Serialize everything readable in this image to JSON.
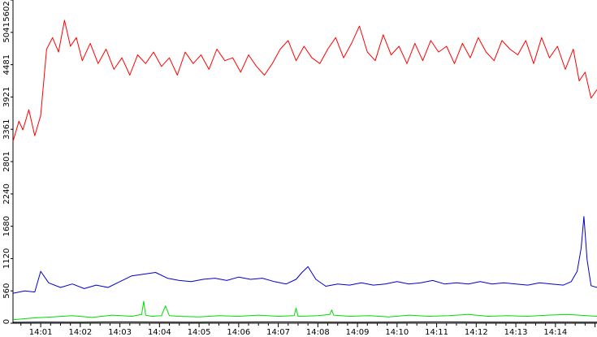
{
  "chart_data": {
    "type": "line",
    "title": "",
    "xlabel": "",
    "ylabel": "",
    "ylim": [
      0,
      5602
    ],
    "y_ticks": [
      0,
      560,
      1120,
      1680,
      2240,
      2801,
      3361,
      3921,
      4481,
      5041,
      5602
    ],
    "y_tick_labels": [
      "0",
      "560",
      "1120",
      "1680",
      "2240",
      "2801",
      "3361",
      "3921",
      "4481",
      "5041",
      "5602"
    ],
    "x_ticks": [
      "14:01",
      "14:02",
      "14:03",
      "14:04",
      "14:05",
      "14:06",
      "14:07",
      "14:08",
      "14:09",
      "14:10",
      "14:11",
      "14:12",
      "14:13",
      "14:14"
    ],
    "x_range_minutes": [
      0.3,
      15.05
    ],
    "grid": false,
    "legend": "none",
    "series": [
      {
        "color": "#ff0000",
        "x": [
          0.3,
          0.45,
          0.55,
          0.7,
          0.85,
          1.0,
          1.15,
          1.3,
          1.45,
          1.6,
          1.75,
          1.9,
          2.05,
          2.25,
          2.45,
          2.65,
          2.85,
          3.05,
          3.25,
          3.45,
          3.65,
          3.85,
          4.05,
          4.25,
          4.45,
          4.65,
          4.85,
          5.05,
          5.25,
          5.45,
          5.65,
          5.85,
          6.05,
          6.25,
          6.45,
          6.65,
          6.85,
          7.05,
          7.25,
          7.45,
          7.65,
          7.85,
          8.05,
          8.25,
          8.45,
          8.65,
          8.85,
          9.05,
          9.25,
          9.45,
          9.65,
          9.85,
          10.05,
          10.25,
          10.45,
          10.65,
          10.85,
          11.05,
          11.25,
          11.45,
          11.65,
          11.85,
          12.05,
          12.25,
          12.45,
          12.65,
          12.85,
          13.05,
          13.25,
          13.45,
          13.65,
          13.85,
          14.05,
          14.25,
          14.45,
          14.6,
          14.75,
          14.9,
          15.05
        ],
        "values": [
          3150,
          3500,
          3350,
          3700,
          3250,
          3600,
          4750,
          4950,
          4700,
          5250,
          4800,
          4950,
          4550,
          4850,
          4500,
          4750,
          4400,
          4600,
          4300,
          4650,
          4500,
          4700,
          4450,
          4600,
          4300,
          4700,
          4500,
          4650,
          4400,
          4750,
          4550,
          4600,
          4350,
          4650,
          4450,
          4300,
          4500,
          4750,
          4900,
          4550,
          4800,
          4600,
          4500,
          4750,
          4950,
          4600,
          4850,
          5150,
          4700,
          4550,
          5000,
          4650,
          4800,
          4500,
          4850,
          4550,
          4900,
          4700,
          4800,
          4500,
          4850,
          4600,
          4950,
          4700,
          4550,
          4900,
          4750,
          4650,
          4900,
          4500,
          4950,
          4600,
          4800,
          4400,
          4750,
          4200,
          4350,
          3900,
          4050
        ]
      },
      {
        "color": "#0000cc",
        "x": [
          0.3,
          0.6,
          0.85,
          1.0,
          1.2,
          1.5,
          1.8,
          2.1,
          2.4,
          2.7,
          3.0,
          3.3,
          3.6,
          3.9,
          4.2,
          4.5,
          4.8,
          5.1,
          5.4,
          5.7,
          6.0,
          6.3,
          6.6,
          6.9,
          7.2,
          7.45,
          7.6,
          7.75,
          7.95,
          8.2,
          8.5,
          8.8,
          9.1,
          9.4,
          9.7,
          10.0,
          10.3,
          10.6,
          10.9,
          11.2,
          11.5,
          11.8,
          12.1,
          12.4,
          12.7,
          13.0,
          13.3,
          13.6,
          13.9,
          14.2,
          14.4,
          14.55,
          14.65,
          14.72,
          14.8,
          14.9,
          15.05
        ],
        "values": [
          520,
          560,
          540,
          900,
          700,
          620,
          680,
          600,
          660,
          620,
          720,
          820,
          850,
          880,
          780,
          740,
          720,
          760,
          780,
          740,
          800,
          760,
          780,
          720,
          680,
          760,
          880,
          980,
          760,
          640,
          680,
          660,
          700,
          660,
          680,
          720,
          680,
          700,
          740,
          680,
          700,
          680,
          720,
          680,
          700,
          680,
          660,
          700,
          680,
          660,
          720,
          900,
          1300,
          1850,
          1100,
          650,
          620
        ]
      },
      {
        "color": "#00dd00",
        "x": [
          0.3,
          0.8,
          1.3,
          1.8,
          2.3,
          2.8,
          3.3,
          3.55,
          3.6,
          3.65,
          3.8,
          4.05,
          4.15,
          4.25,
          4.5,
          5.0,
          5.5,
          6.0,
          6.5,
          7.0,
          7.4,
          7.45,
          7.5,
          8.0,
          8.3,
          8.35,
          8.4,
          8.8,
          9.3,
          9.8,
          10.3,
          10.8,
          11.3,
          11.8,
          12.3,
          12.8,
          13.3,
          13.8,
          14.3,
          14.8,
          15.05
        ],
        "values": [
          60,
          90,
          110,
          130,
          100,
          140,
          120,
          150,
          380,
          140,
          120,
          130,
          300,
          130,
          120,
          110,
          130,
          120,
          140,
          120,
          130,
          260,
          120,
          130,
          150,
          230,
          140,
          120,
          130,
          110,
          140,
          120,
          130,
          150,
          120,
          130,
          120,
          140,
          150,
          130,
          120
        ]
      },
      {
        "color": "#000000",
        "x": [
          0.3,
          1.0,
          2.0,
          3.0,
          4.0,
          5.0,
          6.0,
          7.0,
          8.0,
          9.0,
          10.0,
          11.0,
          12.0,
          13.0,
          14.0,
          15.05
        ],
        "values": [
          15,
          20,
          18,
          22,
          20,
          18,
          20,
          22,
          20,
          18,
          20,
          22,
          20,
          18,
          20,
          18
        ]
      }
    ]
  }
}
